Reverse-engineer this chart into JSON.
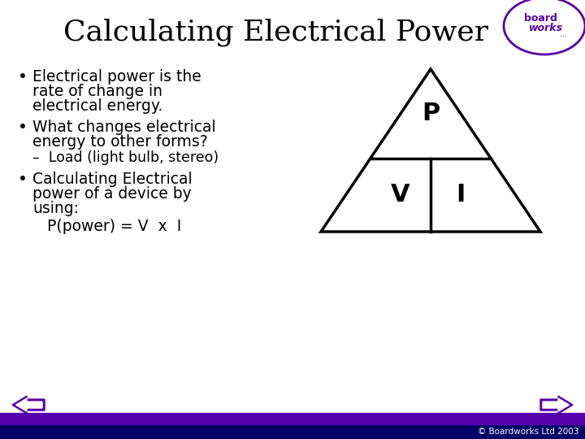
{
  "title": "Calculating Electrical Power",
  "title_fontsize": 26,
  "bg_color": "#ffffff",
  "bullet1_line1": "Electrical power is the",
  "bullet1_line2": "rate of change in",
  "bullet1_line3": "electrical energy.",
  "bullet2_line1": "What changes electrical",
  "bullet2_line2": "energy to other forms?",
  "sub_bullet": "–  Load (light bulb, stereo)",
  "bullet3_line1": "Calculating Electrical",
  "bullet3_line2": "power of a device by",
  "bullet3_line3": "using:",
  "formula": "   P(power) = V  x  I",
  "copyright": "© Boardworks Ltd 2003",
  "purple_color": "#5500aa",
  "navy_color": "#000066",
  "triangle_color": "#000000",
  "label_P": "P",
  "label_V": "V",
  "label_I": "I",
  "body_fontsize": 13.5,
  "sub_fontsize": 12.5,
  "formula_fontsize": 13.5,
  "label_fontsize": 22
}
